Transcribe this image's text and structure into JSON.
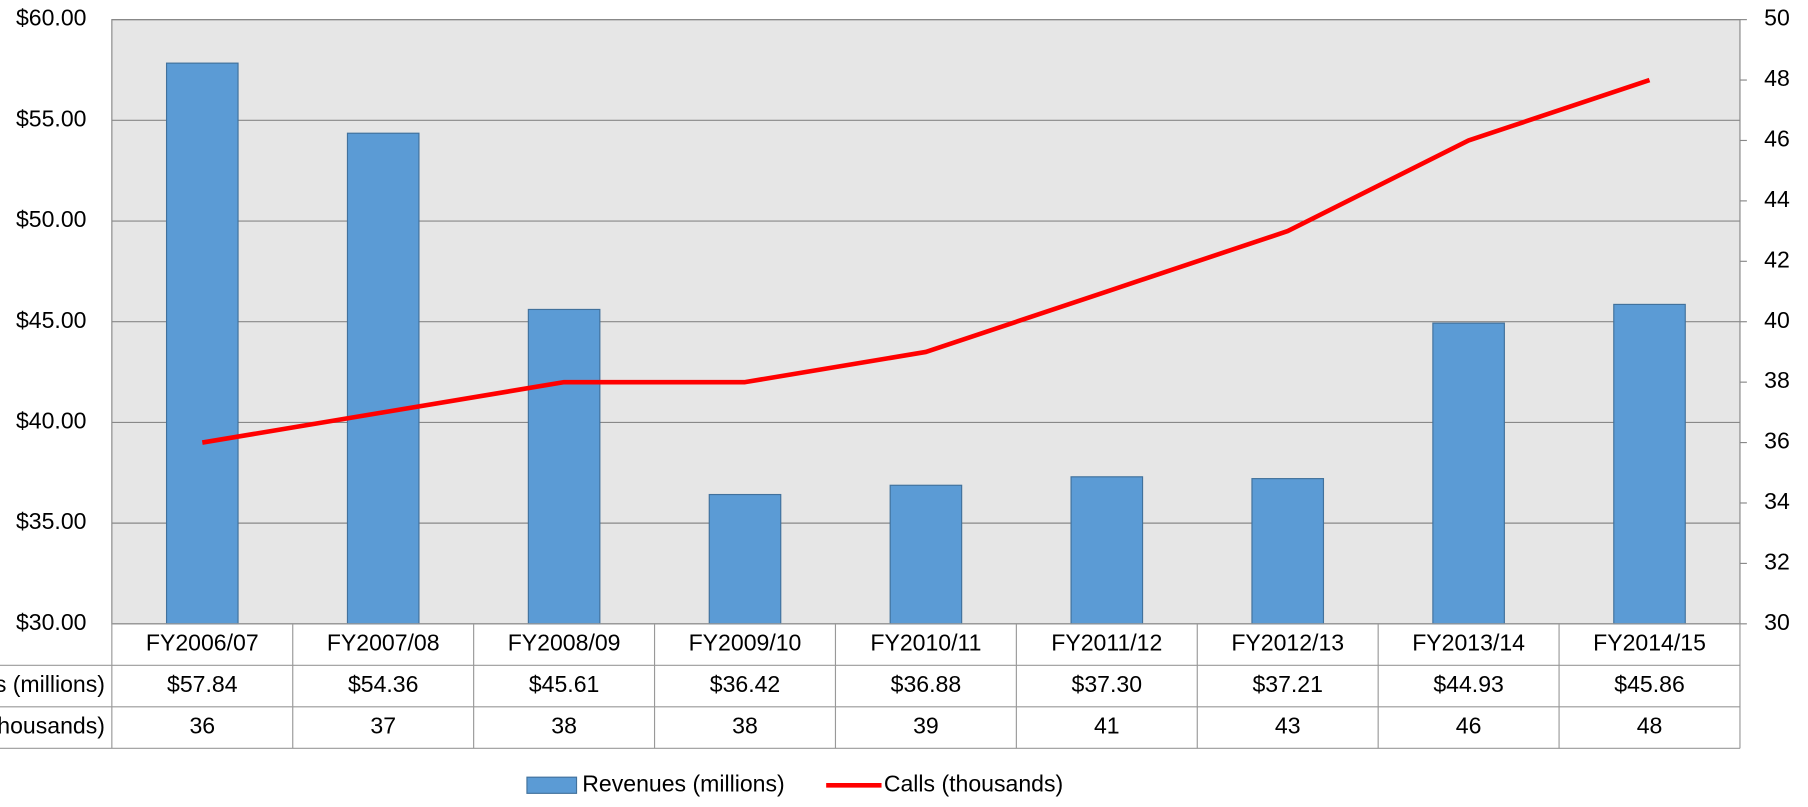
{
  "chart_data": {
    "type": "bar",
    "categories": [
      "FY2006/07",
      "FY2007/08",
      "FY2008/09",
      "FY2009/10",
      "FY2010/11",
      "FY2011/12",
      "FY2012/13",
      "FY2013/14",
      "FY2014/15"
    ],
    "series": [
      {
        "name": "Revenues (millions)",
        "type": "bar",
        "color": "#5b9bd5",
        "values": [
          57.84,
          54.36,
          45.61,
          36.42,
          36.88,
          37.3,
          37.21,
          44.93,
          45.86
        ],
        "value_labels": [
          "$57.84",
          "$54.36",
          "$45.61",
          "$36.42",
          "$36.88",
          "$37.30",
          "$37.21",
          "$44.93",
          "$45.86"
        ]
      },
      {
        "name": "Calls (thousands)",
        "type": "line",
        "axis": "y2",
        "color": "#ff0000",
        "values": [
          36,
          37,
          38,
          38,
          39,
          41,
          43,
          46,
          48
        ]
      }
    ],
    "ylim": [
      30,
      60
    ],
    "yticks": [
      {
        "value": 30,
        "label": "$30.00"
      },
      {
        "value": 35,
        "label": "$35.00"
      },
      {
        "value": 40,
        "label": "$40.00"
      },
      {
        "value": 45,
        "label": "$45.00"
      },
      {
        "value": 50,
        "label": "$50.00"
      },
      {
        "value": 55,
        "label": "$55.00"
      },
      {
        "value": 60,
        "label": "$60.00"
      }
    ],
    "y2lim": [
      30,
      50
    ],
    "y2ticks": [
      30,
      32,
      34,
      36,
      38,
      40,
      42,
      44,
      46,
      48,
      50
    ],
    "grid": true,
    "legend": "bottom"
  }
}
